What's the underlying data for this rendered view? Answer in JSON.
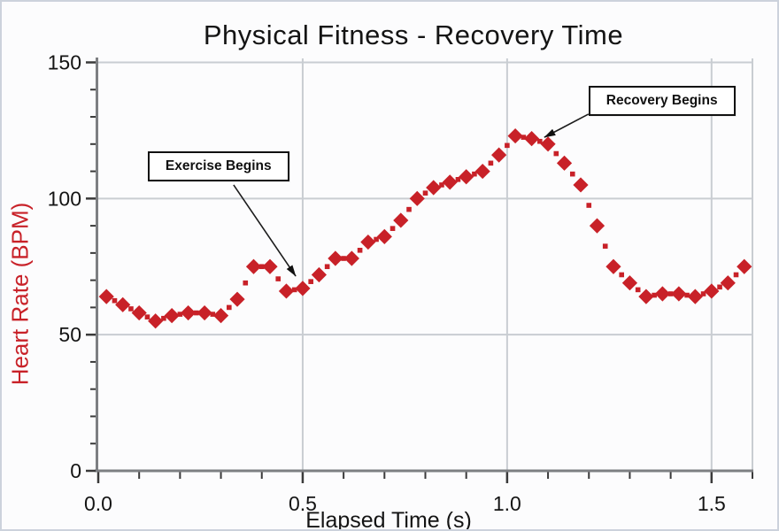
{
  "styles": {
    "accent_red": "#c82128",
    "grid_color": "#c9cdd2",
    "axis_color": "#7d7f82",
    "tick_color": "#3a3a3a",
    "text_color": "#141414",
    "annotation_border": "#111111",
    "background": "#fcfcfd"
  },
  "chart_data": {
    "type": "scatter",
    "title": "Physical Fitness - Recovery Time",
    "xlabel": "Elapsed Time (s)",
    "ylabel": "Heart Rate (BPM)",
    "xlim": [
      0,
      1.6
    ],
    "ylim": [
      0,
      150
    ],
    "grid": true,
    "x_ticks": [
      {
        "label": "0.0",
        "value": 0.0
      },
      {
        "label": "0.5",
        "value": 0.5
      },
      {
        "label": "1.0",
        "value": 1.0
      },
      {
        "label": "1.5",
        "value": 1.5
      }
    ],
    "x_minor_step": 0.1,
    "y_ticks": [
      {
        "label": "0",
        "value": 0
      },
      {
        "label": "50",
        "value": 50
      },
      {
        "label": "100",
        "value": 100
      },
      {
        "label": "150",
        "value": 150
      }
    ],
    "y_minor_step": 10,
    "series": [
      {
        "name": "Heart Rate",
        "marker": "diamond",
        "connector": "dotted",
        "color": "#c82128",
        "x": [
          0.02,
          0.06,
          0.1,
          0.14,
          0.18,
          0.22,
          0.26,
          0.3,
          0.34,
          0.38,
          0.42,
          0.46,
          0.5,
          0.54,
          0.58,
          0.62,
          0.66,
          0.7,
          0.74,
          0.78,
          0.82,
          0.86,
          0.9,
          0.94,
          0.98,
          1.02,
          1.06,
          1.1,
          1.14,
          1.18,
          1.22,
          1.26,
          1.3,
          1.34,
          1.38,
          1.42,
          1.46,
          1.5,
          1.54,
          1.58
        ],
        "y": [
          64,
          61,
          58,
          55,
          57,
          58,
          58,
          57,
          63,
          75,
          75,
          66,
          67,
          72,
          78,
          78,
          84,
          86,
          92,
          100,
          104,
          106,
          108,
          110,
          116,
          123,
          122,
          120,
          113,
          105,
          90,
          75,
          69,
          64,
          65,
          65,
          64,
          66,
          69,
          75
        ]
      }
    ],
    "annotations": [
      {
        "label": "Exercise Begins",
        "box": {
          "x": 0.121,
          "y": 117.3
        },
        "arrow": {
          "from": {
            "x": 0.331,
            "y": 105.0
          },
          "to": {
            "x": 0.483,
            "y": 71.5
          }
        }
      },
      {
        "label": "Recovery Begins",
        "box": {
          "x": 1.199,
          "y": 141.4
        },
        "arrow": {
          "from": {
            "x": 1.199,
            "y": 131.0
          },
          "to": {
            "x": 1.091,
            "y": 122.5
          }
        }
      }
    ]
  }
}
